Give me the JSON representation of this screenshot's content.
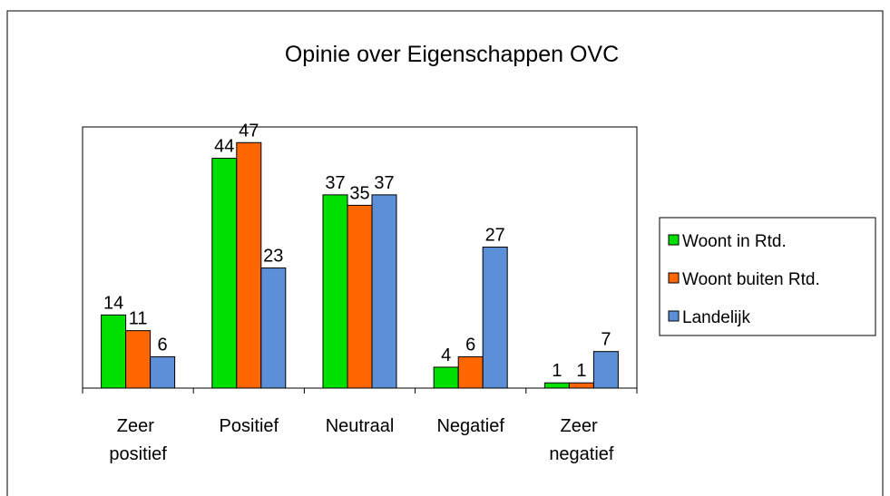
{
  "chart_data": {
    "type": "bar",
    "title": "Opinie over Eigenschappen OVC",
    "categories": [
      "Zeer positief",
      "Positief",
      "Neutraal",
      "Negatief",
      "Zeer negatief"
    ],
    "series": [
      {
        "name": "Woont in Rtd.",
        "color": "#00e000",
        "values": [
          14,
          44,
          37,
          4,
          1
        ]
      },
      {
        "name": "Woont buiten Rtd.",
        "color": "#ff6600",
        "values": [
          11,
          47,
          35,
          6,
          1
        ]
      },
      {
        "name": "Landelijk",
        "color": "#5b8fd8",
        "values": [
          6,
          23,
          37,
          27,
          7
        ]
      }
    ],
    "ylim": [
      0,
      50
    ],
    "legend": "right"
  }
}
